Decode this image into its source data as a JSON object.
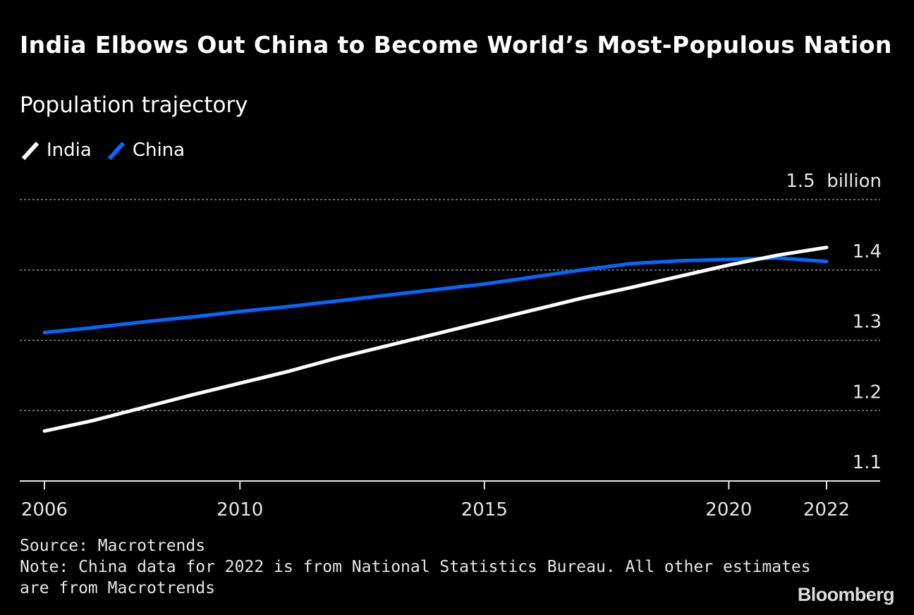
{
  "header": {
    "title": "India Elbows Out China to Become World’s Most-Populous Nation",
    "subtitle": "Population trajectory"
  },
  "legend": {
    "india_label": "India",
    "china_label": "China"
  },
  "chart_data": {
    "type": "line",
    "title": "India Elbows Out China to Become World’s Most-Populous Nation",
    "subtitle": "Population trajectory",
    "xlabel": "",
    "ylabel": "billion",
    "x": [
      2006,
      2007,
      2008,
      2009,
      2010,
      2011,
      2012,
      2013,
      2014,
      2015,
      2016,
      2017,
      2018,
      2019,
      2020,
      2021,
      2022
    ],
    "series": [
      {
        "name": "India",
        "color": "#ffffff",
        "values": [
          1.171,
          1.186,
          1.204,
          1.222,
          1.239,
          1.256,
          1.275,
          1.292,
          1.309,
          1.326,
          1.343,
          1.36,
          1.375,
          1.391,
          1.407,
          1.421,
          1.432
        ]
      },
      {
        "name": "China",
        "color": "#0068ff",
        "values": [
          1.311,
          1.318,
          1.326,
          1.333,
          1.341,
          1.348,
          1.356,
          1.364,
          1.372,
          1.38,
          1.39,
          1.4,
          1.409,
          1.413,
          1.415,
          1.417,
          1.412
        ]
      }
    ],
    "ylim": [
      1.1,
      1.5
    ],
    "yticks": [
      {
        "value": 1.5,
        "label": "1.5  billion"
      },
      {
        "value": 1.4,
        "label": "1.4"
      },
      {
        "value": 1.3,
        "label": "1.3"
      },
      {
        "value": 1.2,
        "label": "1.2"
      },
      {
        "value": 1.1,
        "label": "1.1"
      }
    ],
    "xticks": [
      {
        "value": 2006,
        "label": "2006"
      },
      {
        "value": 2010,
        "label": "2010"
      },
      {
        "value": 2015,
        "label": "2015"
      },
      {
        "value": 2020,
        "label": "2020"
      },
      {
        "value": 2022,
        "label": "2022"
      }
    ],
    "grid": true,
    "legend_position": "top-left"
  },
  "footer": {
    "source": "Source: Macrotrends",
    "note_line1": "Note: China data for 2022 is from National Statistics Bureau. All other estimates",
    "note_line2": "are from Macrotrends"
  },
  "brand": "Bloomberg"
}
